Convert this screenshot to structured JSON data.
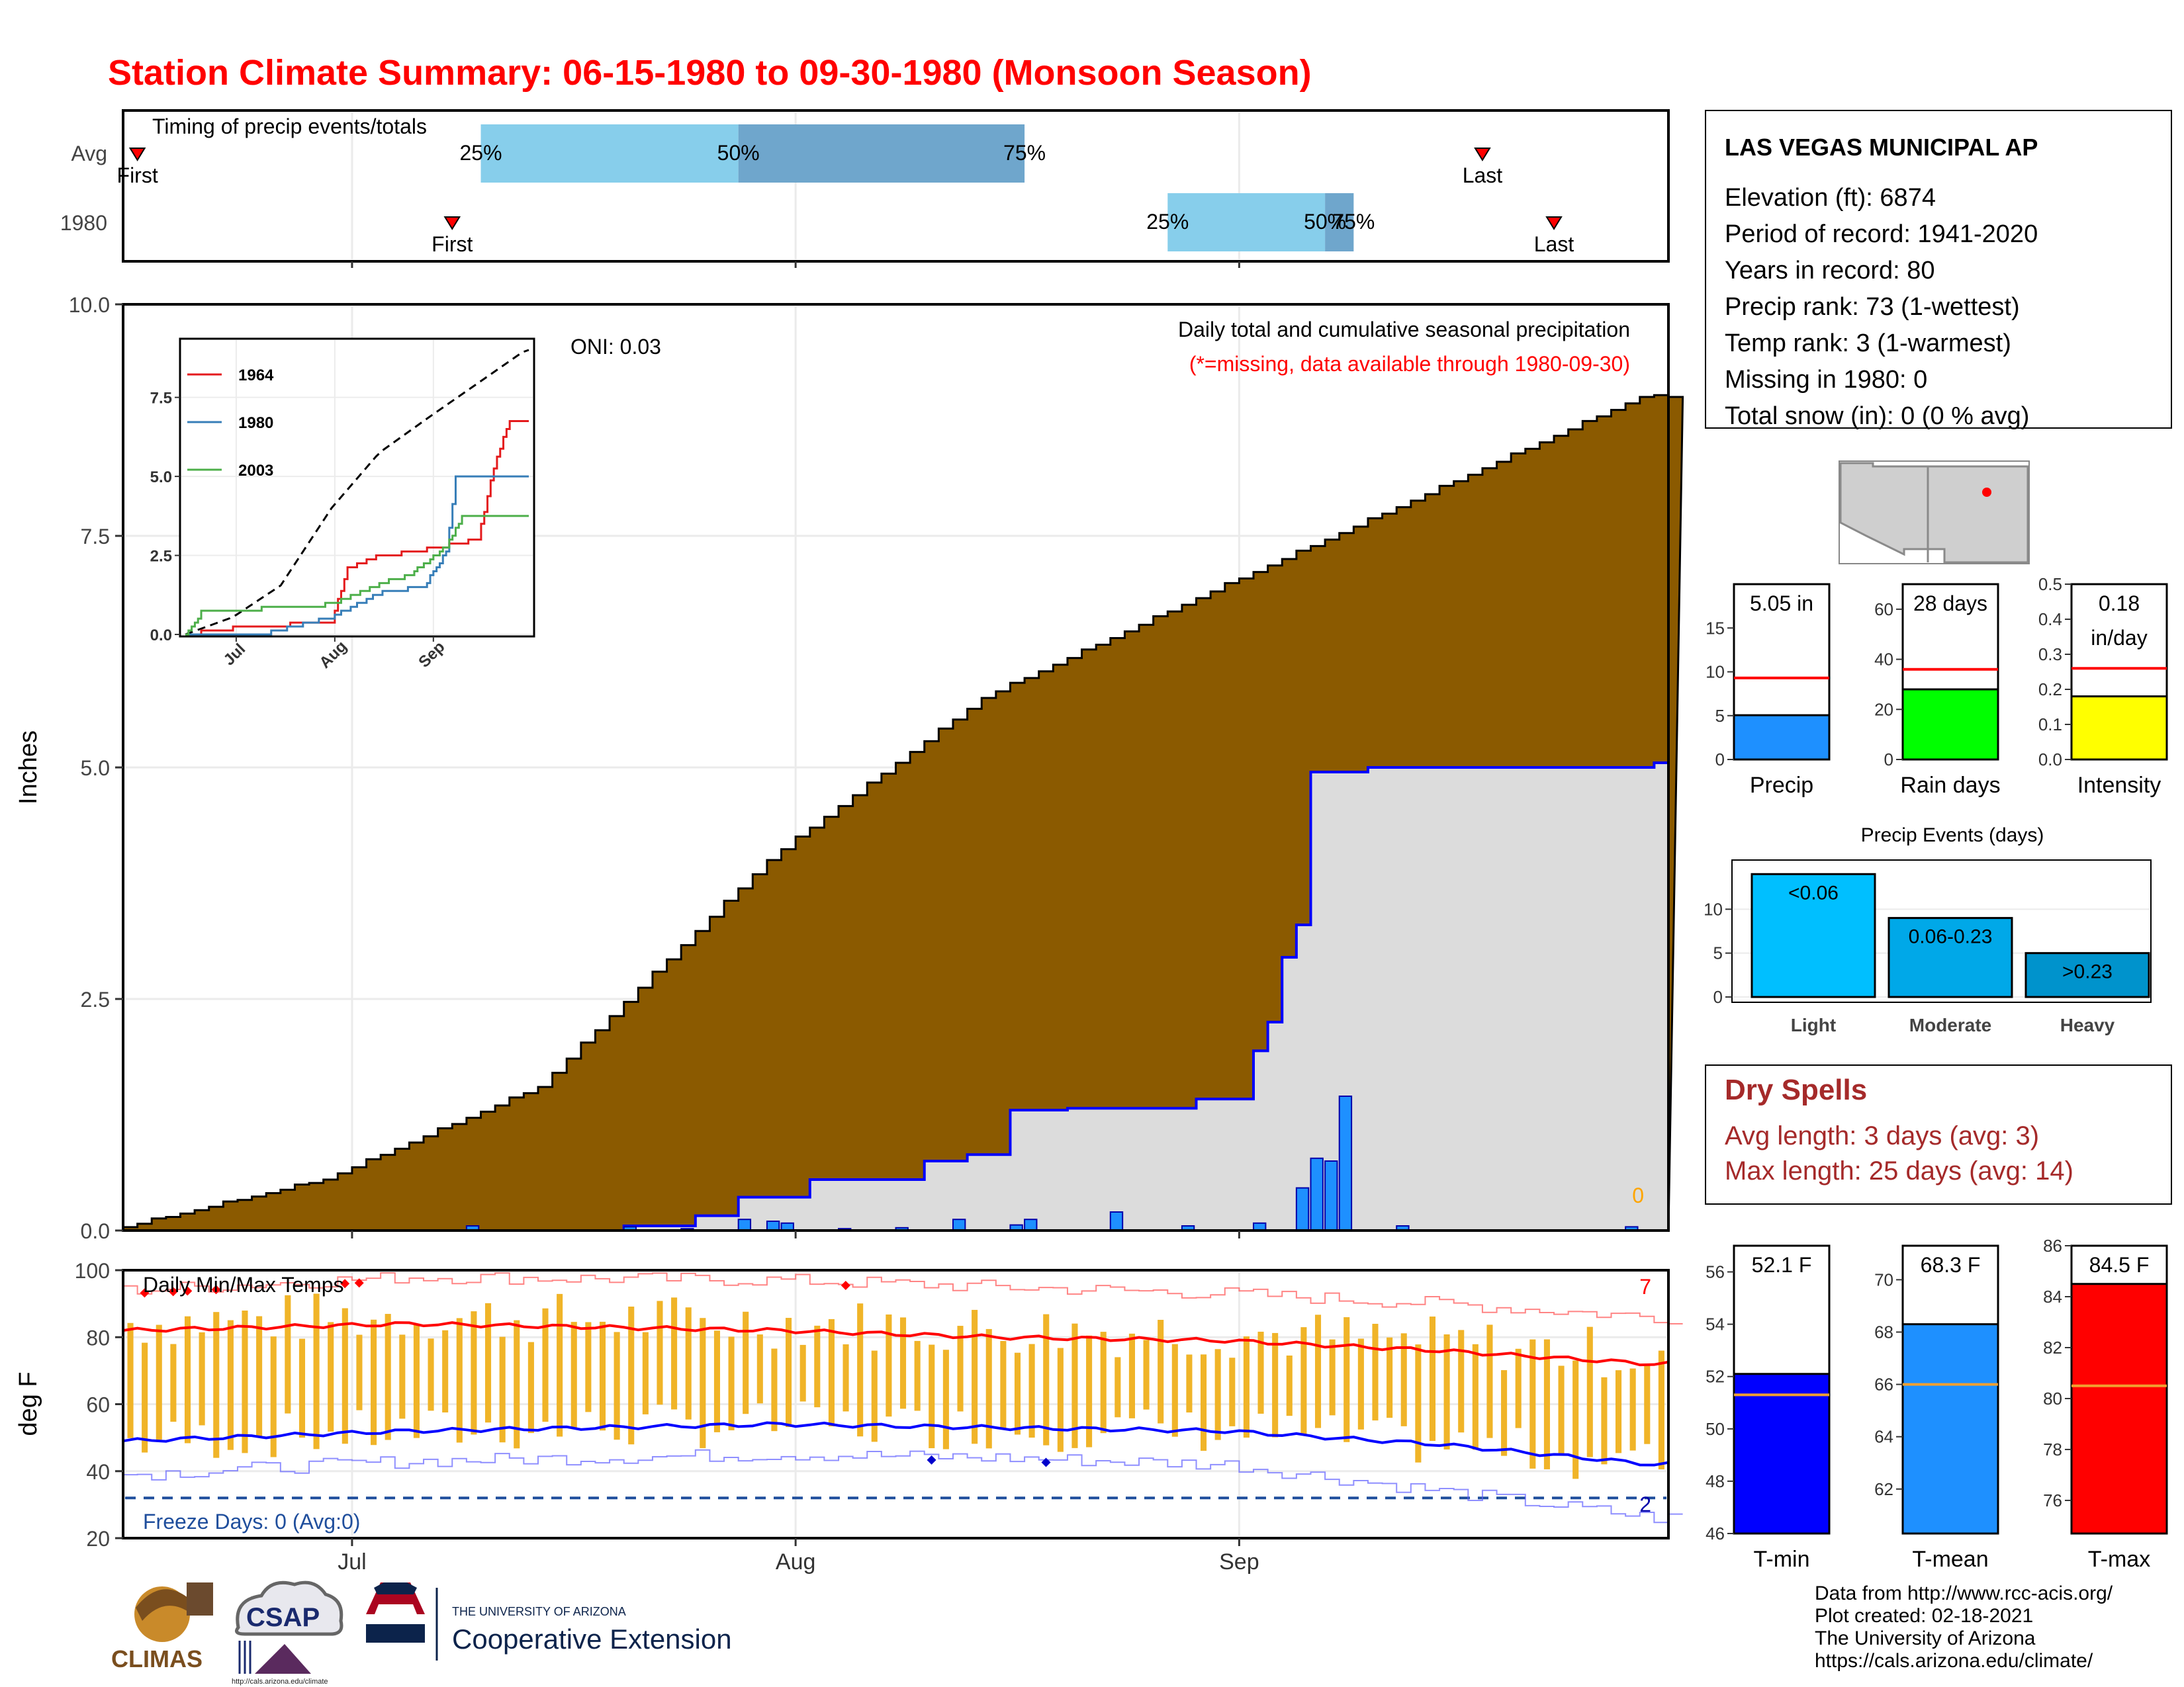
{
  "title": "Station Climate Summary: 06-15-1980 to 09-30-1980 (Monsoon Season)",
  "timing": {
    "title": "Timing of precip events/totals",
    "rows": [
      "Avg",
      "1980"
    ],
    "first_label": "First",
    "last_label": "Last",
    "pct_labels": [
      "25%",
      "50%",
      "75%"
    ],
    "avg": {
      "first": "06-16",
      "p25": "07-10",
      "p50": "07-28",
      "p75": "08-17",
      "last": "09-18"
    },
    "y1980": {
      "first": "07-08",
      "p25": "08-27",
      "p50": "09-07",
      "p75": "09-09",
      "last": "09-23"
    }
  },
  "station": {
    "name": "LAS VEGAS MUNICIPAL AP",
    "elevation": "Elevation (ft): 6874",
    "period": "Period of record: 1941-2020",
    "years": "Years in record: 80",
    "precip_rank": "Precip rank: 73 (1-wettest)",
    "temp_rank": "Temp rank: 3 (1-warmest)",
    "missing": "Missing in 1980: 0",
    "snow": "Total snow (in): 0 (0 % avg)"
  },
  "main": {
    "ylabel": "Inches",
    "oni": "ONI: 0.03",
    "subtitle": "Daily total and cumulative seasonal precipitation",
    "missing_note": "(*=missing, data available through 1980-09-30)",
    "missing_count": "0"
  },
  "temps": {
    "title": "Daily Min/Max Temps",
    "ylabel": "deg F",
    "freeze": "Freeze Days: 0 (Avg:0)",
    "record_high_count": "7",
    "record_low_count": "2"
  },
  "month_labels": [
    "Jul",
    "Aug",
    "Sep"
  ],
  "gauges": {
    "precip": {
      "label": "Precip",
      "value": 5.05,
      "avg": 9.3,
      "text": "5.05 in",
      "ylim": [
        0,
        20
      ],
      "ticks": [
        0,
        5,
        10,
        15
      ]
    },
    "raindays": {
      "label": "Rain days",
      "value": 28,
      "avg": 36,
      "text": "28 days",
      "ylim": [
        0,
        70
      ],
      "ticks": [
        0,
        20,
        40,
        60
      ]
    },
    "intensity": {
      "label": "Intensity",
      "value": 0.18,
      "avg": 0.26,
      "text": "0.18",
      "text2": "in/day",
      "ylim": [
        0,
        0.5
      ],
      "ticks": [
        0.0,
        0.1,
        0.2,
        0.3,
        0.4,
        0.5
      ]
    }
  },
  "events": {
    "title": "Precip Events (days)",
    "categories": [
      "Light",
      "Moderate",
      "Heavy"
    ],
    "bar_labels": [
      "<0.06",
      "0.06-0.23",
      ">0.23"
    ],
    "values": [
      14,
      9,
      5
    ],
    "ylim": [
      0,
      15
    ],
    "ticks": [
      0,
      5,
      10
    ]
  },
  "dry_spells": {
    "title": "Dry Spells",
    "avg": "Avg length: 3 days (avg: 3)",
    "max": "Max length: 25 days (avg: 14)"
  },
  "temp_gauges": {
    "tmin": {
      "label": "T-min",
      "value": 52.1,
      "avg": 51.3,
      "text": "52.1 F",
      "ylim": [
        46,
        57
      ],
      "ticks": [
        46,
        48,
        50,
        52,
        54,
        56
      ]
    },
    "tmean": {
      "label": "T-mean",
      "value": 68.3,
      "avg": 66.0,
      "text": "68.3 F",
      "ylim": [
        60.3,
        71.3
      ],
      "ticks": [
        62,
        64,
        66,
        68,
        70
      ]
    },
    "tmax": {
      "label": "T-max",
      "value": 84.5,
      "avg": 80.5,
      "text": "84.5 F",
      "ylim": [
        74.7,
        86
      ],
      "ticks": [
        76,
        78,
        80,
        82,
        84,
        86
      ]
    }
  },
  "footer": {
    "lines": [
      "Data from http://www.rcc-acis.org/",
      "Plot created: 02-18-2021",
      "The University of Arizona",
      "https://cals.arizona.edu/climate/"
    ],
    "climas": "CLIMAS",
    "csap": "CSAP",
    "csap_url": "http://cals.arizona.edu/climate",
    "ua_line1": "THE UNIVERSITY OF ARIZONA",
    "ua_line2": "Cooperative Extension"
  },
  "colors": {
    "title": "#ff0000",
    "cum_avg": "#8b5a00",
    "cum_year": "#dcdcdc",
    "daily_bar": "#1e90ff",
    "temp_bar": "#f0b428",
    "avg_max": "#ff0000",
    "avg_min": "#0000ff",
    "q_light": "#87ceeb",
    "q_dark": "#6fa6cc",
    "events": [
      "#00bfff",
      "#00a8e8",
      "#0093cc"
    ],
    "gauge_precip": "#1e90ff",
    "gauge_raindays": "#00ff00",
    "gauge_intensity": "#ffff00",
    "tmin": "#0000ff",
    "tmean": "#1e90ff",
    "tmax": "#ff0000",
    "dry_spells": "#a52a2a"
  },
  "chart_data": [
    {
      "type": "area",
      "title": "Daily total and cumulative seasonal precipitation",
      "ylabel": "Inches",
      "ylim": [
        0,
        10
      ],
      "yticks": [
        0.0,
        2.5,
        5.0,
        7.5,
        10.0
      ],
      "xrange": [
        "06-15",
        "09-30"
      ],
      "series": [
        {
          "kind": "step-area",
          "x": [
            "06-15",
            "06-30",
            "07-15",
            "07-31",
            "08-15",
            "08-31",
            "09-15",
            "09-30"
          ],
          "values": [
            0.0,
            0.55,
            1.55,
            4.0,
            5.75,
            6.9,
            7.95,
            9.0
          ]
        },
        {
          "kind": "step-area",
          "x": [
            "06-15",
            "07-09",
            "07-20",
            "07-25",
            "07-28",
            "08-02",
            "08-10",
            "08-13",
            "08-16",
            "08-20",
            "08-29",
            "09-02",
            "09-03",
            "09-04",
            "09-05",
            "09-06",
            "09-07",
            "09-08",
            "09-10",
            "09-20",
            "09-30"
          ],
          "values": [
            0.0,
            0.0,
            0.05,
            0.16,
            0.36,
            0.55,
            0.75,
            0.82,
            1.3,
            1.32,
            1.42,
            1.94,
            2.25,
            2.95,
            3.3,
            4.95,
            4.95,
            4.95,
            5.0,
            5.0,
            5.05
          ]
        },
        {
          "kind": "bar",
          "x": [
            "07-09",
            "07-20",
            "07-24",
            "07-28",
            "07-30",
            "07-31",
            "08-04",
            "08-08",
            "08-12",
            "08-16",
            "08-17",
            "08-23",
            "08-28",
            "09-02",
            "09-05",
            "09-06",
            "09-07",
            "09-08",
            "09-12",
            "09-28"
          ],
          "values": [
            0.05,
            0.04,
            0.02,
            0.12,
            0.1,
            0.08,
            0.02,
            0.03,
            0.12,
            0.06,
            0.12,
            0.2,
            0.05,
            0.08,
            0.46,
            0.78,
            0.75,
            1.45,
            0.05,
            0.04
          ]
        }
      ],
      "inset": {
        "type": "line",
        "ylim": [
          0.0,
          9.0
        ],
        "yticks": [
          0.0,
          2.5,
          5.0,
          7.5
        ],
        "xticks": [
          "Jul",
          "Aug",
          "Sep"
        ],
        "series": [
          {
            "name": "1964",
            "x": [
              "06-15",
              "06-30",
              "07-31",
              "08-05",
              "08-15",
              "08-25",
              "09-05",
              "09-15",
              "09-20",
              "09-25",
              "09-30"
            ],
            "values": [
              0.0,
              0.2,
              0.4,
              2.1,
              2.5,
              2.6,
              2.8,
              3.0,
              5.3,
              6.8,
              6.8
            ]
          },
          {
            "name": "1980",
            "x": [
              "06-15",
              "07-09",
              "07-31",
              "08-16",
              "08-29",
              "09-05",
              "09-08",
              "09-10",
              "09-30"
            ],
            "values": [
              0.0,
              0.0,
              0.55,
              1.35,
              1.5,
              2.6,
              4.95,
              5.0,
              5.05
            ]
          },
          {
            "name": "2003",
            "x": [
              "06-15",
              "06-20",
              "07-15",
              "07-31",
              "08-15",
              "08-25",
              "09-05",
              "09-10",
              "09-30"
            ],
            "values": [
              0.0,
              0.7,
              0.85,
              0.95,
              1.6,
              1.9,
              2.8,
              3.7,
              3.7
            ]
          }
        ]
      }
    },
    {
      "type": "bar",
      "title": "Daily Min/Max Temps",
      "ylabel": "deg F",
      "ylim": [
        20,
        100
      ],
      "yticks": [
        20,
        40,
        60,
        80,
        100
      ],
      "avg_max": {
        "x": [
          "06-15",
          "07-05",
          "07-31",
          "08-15",
          "08-31",
          "09-15",
          "09-30"
        ],
        "values": [
          82,
          84,
          82,
          80,
          79,
          76,
          72
        ]
      },
      "avg_min": {
        "x": [
          "06-15",
          "07-05",
          "07-31",
          "08-15",
          "08-31",
          "09-15",
          "09-30"
        ],
        "values": [
          49,
          52,
          54,
          53,
          52,
          48,
          42
        ]
      },
      "record_high": {
        "x": [
          "06-15",
          "07-05",
          "07-31",
          "08-15",
          "08-31",
          "09-15",
          "09-30"
        ],
        "values": [
          94,
          98,
          97,
          95,
          93,
          90,
          86
        ]
      },
      "record_low": {
        "x": [
          "06-15",
          "07-05",
          "07-31",
          "08-15",
          "08-31",
          "09-15",
          "09-30"
        ],
        "values": [
          39,
          43,
          45,
          44,
          42,
          34,
          26
        ]
      },
      "freeze_line": 32
    }
  ]
}
